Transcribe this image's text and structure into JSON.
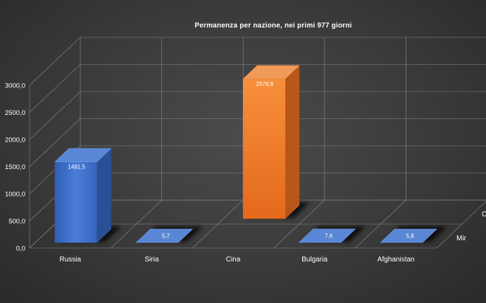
{
  "chart_data": {
    "type": "bar",
    "title": "Permanenza per nazione, nei primi 977 giorni",
    "categories": [
      "Russia",
      "Siria",
      "Cina",
      "Bulgaria",
      "Afghanistan"
    ],
    "series": [
      {
        "name": "CSS",
        "values": [
          null,
          null,
          2578.8,
          null,
          null
        ],
        "labels": [
          "",
          "",
          "2578,8",
          "",
          ""
        ],
        "color": "#ed7d31"
      },
      {
        "name": "Mir",
        "values": [
          1491.5,
          5.7,
          null,
          7.6,
          5.8
        ],
        "labels": [
          "1491,5",
          "5,7",
          "",
          "7,6",
          "5,8"
        ],
        "color": "#4472c4"
      }
    ],
    "ylim": [
      0,
      3000
    ],
    "yticks": [
      "0,0",
      "500,0",
      "1000,0",
      "1500,0",
      "2000,0",
      "2500,0",
      "3000,0"
    ],
    "grid": true,
    "projection": "3d"
  }
}
